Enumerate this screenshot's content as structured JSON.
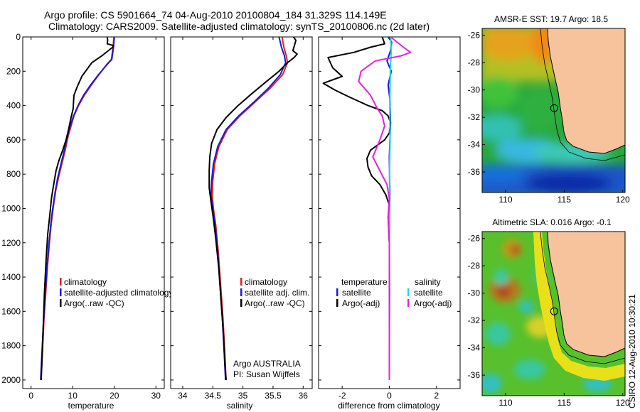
{
  "header": {
    "line1": "Argo profile: CS 5901664_74 04-Aug-2010 20100804_184 31.329S 114.149E",
    "line2": "Climatology: CARS2009. Satellite-adjusted climatology: synTS_20100806.nc (2d later)"
  },
  "side_stamp": "CSIRO 12-Aug-2010 10:30:21",
  "colors": {
    "climatology": "#e0201c",
    "satellite": "#1a1ad8",
    "argo": "#000000",
    "argo_adj": "#e51ee5",
    "satellite_diff": "#18d8e8",
    "land": "#f6c39d"
  },
  "chart_data": [
    {
      "type": "line",
      "xlabel": "temperature",
      "ylabel": "",
      "xlim": [
        -2,
        32
      ],
      "ylim": [
        2050,
        0
      ],
      "xticks": [
        0,
        10,
        20,
        30
      ],
      "yticks": [
        0,
        200,
        400,
        600,
        800,
        1000,
        1200,
        1400,
        1600,
        1800,
        2000
      ],
      "y_inverted": true,
      "legend": [
        "climatology",
        "satellite-adjusted climatology",
        "Argo(..raw -QC)"
      ],
      "legend_placement": "lower-right",
      "series": [
        {
          "name": "climatology",
          "color": "#e0201c",
          "points": [
            [
              19.9,
              0
            ],
            [
              19.7,
              60
            ],
            [
              19.3,
              130
            ],
            [
              18.2,
              160
            ],
            [
              16.3,
              220
            ],
            [
              14.5,
              280
            ],
            [
              12.8,
              340
            ],
            [
              11.4,
              400
            ],
            [
              10.3,
              460
            ],
            [
              9.6,
              520
            ],
            [
              8.9,
              580
            ],
            [
              8.2,
              660
            ],
            [
              7.4,
              740
            ],
            [
              6.6,
              820
            ],
            [
              5.9,
              900
            ],
            [
              5.3,
              1000
            ],
            [
              4.8,
              1100
            ],
            [
              4.4,
              1200
            ],
            [
              3.9,
              1350
            ],
            [
              3.5,
              1500
            ],
            [
              3.1,
              1650
            ],
            [
              2.8,
              1800
            ],
            [
              2.6,
              1900
            ],
            [
              2.4,
              2000
            ]
          ]
        },
        {
          "name": "satellite-adjusted climatology",
          "color": "#1a1ad8",
          "points": [
            [
              20.0,
              0
            ],
            [
              19.8,
              60
            ],
            [
              19.4,
              130
            ],
            [
              18.3,
              160
            ],
            [
              16.2,
              220
            ],
            [
              14.3,
              280
            ],
            [
              12.6,
              340
            ],
            [
              11.3,
              400
            ],
            [
              10.2,
              460
            ],
            [
              9.4,
              520
            ],
            [
              8.7,
              580
            ],
            [
              8.0,
              660
            ],
            [
              7.2,
              740
            ],
            [
              6.4,
              820
            ],
            [
              5.8,
              900
            ],
            [
              5.2,
              1000
            ],
            [
              4.7,
              1100
            ],
            [
              4.3,
              1200
            ],
            [
              3.8,
              1350
            ],
            [
              3.4,
              1500
            ],
            [
              3.0,
              1650
            ],
            [
              2.7,
              1800
            ],
            [
              2.5,
              1900
            ],
            [
              2.3,
              2000
            ]
          ]
        },
        {
          "name": "Argo(..raw -QC)",
          "color": "#000000",
          "points": [
            [
              18.3,
              0
            ],
            [
              18.4,
              20
            ],
            [
              18.3,
              40
            ],
            [
              19.8,
              50
            ],
            [
              19.6,
              60
            ],
            [
              17.0,
              110
            ],
            [
              14.6,
              150
            ],
            [
              12.2,
              230
            ],
            [
              11.1,
              290
            ],
            [
              10.3,
              340
            ],
            [
              10.1,
              420
            ],
            [
              9.6,
              470
            ],
            [
              9.0,
              540
            ],
            [
              8.4,
              600
            ],
            [
              7.6,
              660
            ],
            [
              6.7,
              720
            ],
            [
              6.0,
              780
            ],
            [
              5.5,
              850
            ],
            [
              4.9,
              940
            ],
            [
              4.5,
              1040
            ],
            [
              4.0,
              1150
            ],
            [
              3.6,
              1300
            ],
            [
              3.2,
              1500
            ],
            [
              2.9,
              1700
            ],
            [
              2.6,
              1900
            ],
            [
              2.4,
              2000
            ]
          ]
        }
      ]
    },
    {
      "type": "line",
      "xlabel": "salinity",
      "ylabel": "",
      "xlim": [
        33.8,
        36.15
      ],
      "ylim": [
        2050,
        0
      ],
      "xticks": [
        34,
        34.5,
        35,
        35.5,
        36
      ],
      "y_inverted": true,
      "legend": [
        "climatology",
        "satellite adj. clim.",
        "Argo(..raw -QC)"
      ],
      "legend_placement": "lower-right",
      "annotations": [
        "Argo AUSTRALIA",
        "PI: Susan Wijffels"
      ],
      "series": [
        {
          "name": "climatology",
          "color": "#e0201c",
          "points": [
            [
              35.65,
              0
            ],
            [
              35.68,
              60
            ],
            [
              35.72,
              110
            ],
            [
              35.74,
              150
            ],
            [
              35.66,
              220
            ],
            [
              35.45,
              300
            ],
            [
              35.2,
              380
            ],
            [
              34.95,
              460
            ],
            [
              34.74,
              540
            ],
            [
              34.6,
              640
            ],
            [
              34.53,
              740
            ],
            [
              34.5,
              840
            ],
            [
              34.49,
              920
            ],
            [
              34.51,
              1000
            ],
            [
              34.55,
              1100
            ],
            [
              34.59,
              1250
            ],
            [
              34.63,
              1450
            ],
            [
              34.67,
              1650
            ],
            [
              34.7,
              1850
            ],
            [
              34.72,
              2000
            ]
          ]
        },
        {
          "name": "satellite adj. clim.",
          "color": "#1a1ad8",
          "points": [
            [
              35.6,
              0
            ],
            [
              35.64,
              60
            ],
            [
              35.69,
              110
            ],
            [
              35.71,
              150
            ],
            [
              35.62,
              220
            ],
            [
              35.42,
              300
            ],
            [
              35.18,
              380
            ],
            [
              34.93,
              460
            ],
            [
              34.72,
              540
            ],
            [
              34.58,
              640
            ],
            [
              34.51,
              740
            ],
            [
              34.48,
              840
            ],
            [
              34.47,
              920
            ],
            [
              34.5,
              1000
            ],
            [
              34.54,
              1100
            ],
            [
              34.58,
              1250
            ],
            [
              34.62,
              1450
            ],
            [
              34.66,
              1650
            ],
            [
              34.69,
              1850
            ],
            [
              34.71,
              2000
            ]
          ]
        },
        {
          "name": "Argo(..raw -QC)",
          "color": "#000000",
          "points": [
            [
              35.84,
              0
            ],
            [
              35.88,
              20
            ],
            [
              35.83,
              80
            ],
            [
              35.9,
              100
            ],
            [
              35.85,
              120
            ],
            [
              35.74,
              150
            ],
            [
              35.6,
              200
            ],
            [
              35.39,
              260
            ],
            [
              35.15,
              330
            ],
            [
              34.92,
              400
            ],
            [
              34.72,
              470
            ],
            [
              34.57,
              540
            ],
            [
              34.48,
              620
            ],
            [
              34.45,
              700
            ],
            [
              34.44,
              780
            ],
            [
              34.44,
              880
            ],
            [
              34.47,
              960
            ],
            [
              34.51,
              1060
            ],
            [
              34.55,
              1180
            ],
            [
              34.6,
              1350
            ],
            [
              34.64,
              1550
            ],
            [
              34.68,
              1750
            ],
            [
              34.7,
              1900
            ],
            [
              34.72,
              2000
            ]
          ]
        }
      ]
    },
    {
      "type": "line",
      "xlabel": "difference from climatology",
      "ylabel": "",
      "xlim": [
        -3.0,
        3.0
      ],
      "ylim": [
        2050,
        0
      ],
      "xticks": [
        -2,
        0,
        2
      ],
      "y_inverted": true,
      "legend": [
        "temperature",
        "satellite",
        "Argo(-adj)",
        "salinity",
        "satellite",
        "Argo(-adj)"
      ],
      "legend_placement": "lower-center",
      "series": [
        {
          "name": "temperature satellite",
          "color": "#1a1ad8",
          "points": [
            [
              -0.05,
              0
            ],
            [
              0.1,
              30
            ],
            [
              0.05,
              80
            ],
            [
              -0.1,
              140
            ],
            [
              0.08,
              200
            ],
            [
              -0.05,
              280
            ],
            [
              0.02,
              360
            ],
            [
              0.05,
              500
            ],
            [
              0.0,
              700
            ],
            [
              0.02,
              900
            ],
            [
              0.0,
              1200
            ],
            [
              0.01,
              1500
            ],
            [
              0.0,
              1800
            ],
            [
              0.0,
              2000
            ]
          ]
        },
        {
          "name": "temperature Argo(-adj)",
          "color": "#000000",
          "points": [
            [
              -0.3,
              0
            ],
            [
              -0.2,
              40
            ],
            [
              -0.8,
              60
            ],
            [
              -1.5,
              90
            ],
            [
              -2.6,
              120
            ],
            [
              -2.4,
              180
            ],
            [
              -2.0,
              230
            ],
            [
              -2.8,
              270
            ],
            [
              -2.3,
              310
            ],
            [
              -1.7,
              350
            ],
            [
              -0.9,
              400
            ],
            [
              -0.3,
              430
            ],
            [
              -0.05,
              460
            ],
            [
              0.05,
              500
            ],
            [
              0.0,
              560
            ],
            [
              -0.2,
              600
            ],
            [
              -0.8,
              660
            ],
            [
              -0.95,
              710
            ],
            [
              -0.9,
              760
            ],
            [
              -0.75,
              810
            ],
            [
              -0.4,
              860
            ],
            [
              -0.15,
              920
            ],
            [
              0.0,
              980
            ],
            [
              -0.05,
              1050
            ],
            [
              0.0,
              1200
            ],
            [
              0.0,
              1500
            ],
            [
              0.0,
              1800
            ],
            [
              0.0,
              2000
            ]
          ]
        },
        {
          "name": "salinity satellite",
          "color": "#18d8e8",
          "points": [
            [
              0.05,
              0
            ],
            [
              0.08,
              80
            ],
            [
              0.04,
              200
            ],
            [
              0.02,
              400
            ],
            [
              0.03,
              600
            ],
            [
              0.01,
              800
            ],
            [
              0.0,
              1200
            ],
            [
              0.0,
              1600
            ],
            [
              0.0,
              2000
            ]
          ]
        },
        {
          "name": "salinity Argo(-adj)",
          "color": "#e51ee5",
          "points": [
            [
              0.05,
              0
            ],
            [
              0.6,
              60
            ],
            [
              0.9,
              90
            ],
            [
              0.5,
              110
            ],
            [
              -0.6,
              140
            ],
            [
              -1.2,
              200
            ],
            [
              -1.3,
              260
            ],
            [
              -0.8,
              340
            ],
            [
              -0.5,
              420
            ],
            [
              -0.3,
              460
            ],
            [
              -0.2,
              520
            ],
            [
              -0.4,
              600
            ],
            [
              -0.7,
              700
            ],
            [
              -0.4,
              780
            ],
            [
              -0.1,
              860
            ],
            [
              0.0,
              940
            ],
            [
              -0.05,
              1050
            ],
            [
              0.0,
              1200
            ],
            [
              0.0,
              1500
            ],
            [
              0.0,
              1800
            ],
            [
              0.0,
              2000
            ]
          ]
        }
      ]
    },
    {
      "type": "heatmap",
      "title": "AMSR-E SST: 19.7 Argo: 18.5",
      "xlim": [
        108,
        120.2
      ],
      "ylim": [
        -37.5,
        -25.5
      ],
      "xticks": [
        110,
        115,
        120
      ],
      "yticks": [
        -26,
        -28,
        -30,
        -32,
        -34,
        -36
      ],
      "marker": {
        "lon": 114.149,
        "lat": -31.329
      }
    },
    {
      "type": "heatmap",
      "title": "Altimetric SLA: 0.016 Argo: -0.1",
      "xlim": [
        108,
        120.2
      ],
      "ylim": [
        -37.5,
        -25.5
      ],
      "xticks": [
        110,
        115,
        120
      ],
      "yticks": [
        -26,
        -28,
        -30,
        -32,
        -34,
        -36
      ],
      "marker": {
        "lon": 114.149,
        "lat": -31.329
      }
    }
  ]
}
